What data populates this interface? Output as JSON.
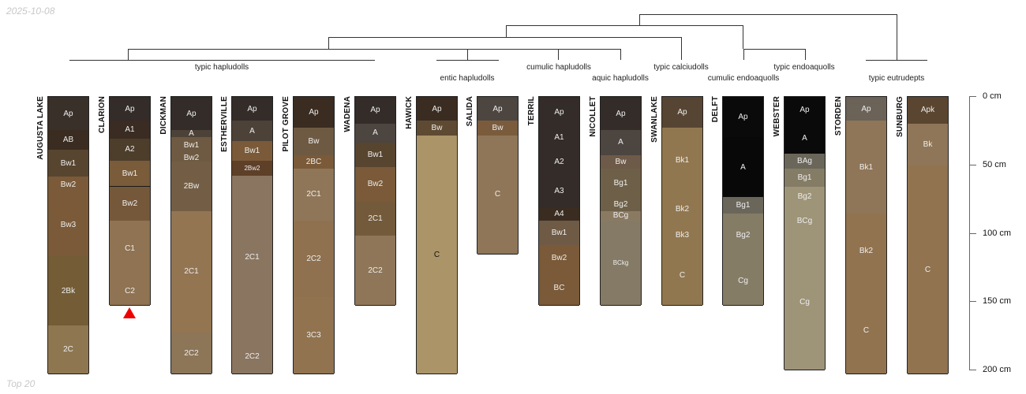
{
  "watermark_top": "2025-10-08",
  "watermark_bottom": "Top 20",
  "taxa": [
    {
      "label": "typic hapludolls"
    },
    {
      "label": "entic hapludolls"
    },
    {
      "label": "cumulic hapludolls"
    },
    {
      "label": "aquic hapludolls"
    },
    {
      "label": "typic calciudolls"
    },
    {
      "label": "cumulic endoaquolls"
    },
    {
      "label": "typic endoaquolls"
    },
    {
      "label": "typic eutrudepts"
    }
  ],
  "axis": {
    "unit": "cm",
    "ticks": [
      "0 cm",
      "50 cm",
      "100 cm",
      "150 cm",
      "200 cm"
    ],
    "tick_values": [
      0,
      50,
      100,
      150,
      200
    ]
  },
  "profiles": [
    {
      "name": "AUGUSTA LAKE",
      "horizons": [
        {
          "label": "Ap",
          "top": 0,
          "bottom": 25,
          "color": "#3a302a"
        },
        {
          "label": "AB",
          "top": 25,
          "bottom": 39,
          "color": "#3a2c20"
        },
        {
          "label": "Bw1",
          "top": 39,
          "bottom": 59,
          "color": "#574530"
        },
        {
          "label": "Bw2",
          "top": 59,
          "bottom": 71,
          "color": "#7a5a38"
        },
        {
          "label": "Bw3",
          "top": 71,
          "bottom": 117,
          "color": "#7a5a38"
        },
        {
          "label": "2Bk",
          "top": 117,
          "bottom": 168,
          "color": "#735c36"
        },
        {
          "label": "2C",
          "top": 168,
          "bottom": 203,
          "color": "#8e7750"
        }
      ]
    },
    {
      "name": "CLARION",
      "marker": "truncated",
      "horizons": [
        {
          "label": "Ap",
          "top": 0,
          "bottom": 18,
          "color": "#332c28"
        },
        {
          "label": "A1",
          "top": 18,
          "bottom": 31,
          "color": "#3a2c22"
        },
        {
          "label": "A2",
          "top": 31,
          "bottom": 47,
          "color": "#4d3d2b"
        },
        {
          "label": "Bw1",
          "top": 47,
          "bottom": 66,
          "color": "#7a5c3a"
        },
        {
          "label": "Bw2",
          "top": 66,
          "bottom": 91,
          "color": "#75583a"
        },
        {
          "label": "C1",
          "top": 91,
          "bottom": 132,
          "color": "#8f7352"
        },
        {
          "label": "C2",
          "top": 132,
          "bottom": 153,
          "color": "#8f7352"
        }
      ]
    },
    {
      "name": "DICKMAN",
      "horizons": [
        {
          "label": "Ap",
          "top": 0,
          "bottom": 25,
          "color": "#332c28"
        },
        {
          "label": "A",
          "top": 25,
          "bottom": 30,
          "color": "#4d4238"
        },
        {
          "label": "Bw1",
          "top": 30,
          "bottom": 42,
          "color": "#6e5a42"
        },
        {
          "label": "Bw2",
          "top": 42,
          "bottom": 48,
          "color": "#6e5a42"
        },
        {
          "label": "2Bw",
          "top": 48,
          "bottom": 84,
          "color": "#735e45"
        },
        {
          "label": "2C1",
          "top": 84,
          "bottom": 173,
          "color": "#937552"
        },
        {
          "label": "2C2",
          "top": 173,
          "bottom": 203,
          "color": "#8d7558"
        }
      ]
    },
    {
      "name": "ESTHERVILLE",
      "horizons": [
        {
          "label": "Ap",
          "top": 0,
          "bottom": 18,
          "color": "#332c28"
        },
        {
          "label": "A",
          "top": 18,
          "bottom": 33,
          "color": "#4d4238"
        },
        {
          "label": "Bw1",
          "top": 33,
          "bottom": 47,
          "color": "#7a5a38"
        },
        {
          "label": "2Bw2",
          "top": 47,
          "bottom": 58,
          "color": "#5e3f28"
        },
        {
          "label": "2C1",
          "top": 58,
          "bottom": 178,
          "color": "#8a7560"
        },
        {
          "label": "2C2",
          "top": 178,
          "bottom": 203,
          "color": "#8a7560"
        }
      ]
    },
    {
      "name": "PILOT GROVE",
      "horizons": [
        {
          "label": "Ap",
          "top": 0,
          "bottom": 23,
          "color": "#3a2c20"
        },
        {
          "label": "Bw",
          "top": 23,
          "bottom": 43,
          "color": "#6e5a42"
        },
        {
          "label": "2BC",
          "top": 43,
          "bottom": 53,
          "color": "#7a5a38"
        },
        {
          "label": "2C1",
          "top": 53,
          "bottom": 91,
          "color": "#8f7658"
        },
        {
          "label": "2C2",
          "top": 91,
          "bottom": 147,
          "color": "#8f7150"
        },
        {
          "label": "3C3",
          "top": 147,
          "bottom": 203,
          "color": "#917350"
        }
      ]
    },
    {
      "name": "WADENA",
      "horizons": [
        {
          "label": "Ap",
          "top": 0,
          "bottom": 20,
          "color": "#332c28"
        },
        {
          "label": "A",
          "top": 20,
          "bottom": 34,
          "color": "#4d4540"
        },
        {
          "label": "Bw1",
          "top": 34,
          "bottom": 52,
          "color": "#574530"
        },
        {
          "label": "Bw2",
          "top": 52,
          "bottom": 77,
          "color": "#7a5a38"
        },
        {
          "label": "2C1",
          "top": 77,
          "bottom": 102,
          "color": "#735a3a"
        },
        {
          "label": "2C2",
          "top": 102,
          "bottom": 153,
          "color": "#8f7658"
        }
      ]
    },
    {
      "name": "HAWICK",
      "horizons": [
        {
          "label": "Ap",
          "top": 0,
          "bottom": 18,
          "color": "#3a2c20"
        },
        {
          "label": "Bw",
          "top": 18,
          "bottom": 29,
          "color": "#5e4a32"
        },
        {
          "label": "C",
          "top": 29,
          "bottom": 203,
          "color": "#ab9468"
        }
      ]
    },
    {
      "name": "SALIDA",
      "horizons": [
        {
          "label": "Ap",
          "top": 0,
          "bottom": 18,
          "color": "#4d4540"
        },
        {
          "label": "Bw",
          "top": 18,
          "bottom": 29,
          "color": "#7a5c3d"
        },
        {
          "label": "C",
          "top": 29,
          "bottom": 115,
          "color": "#8f7658"
        }
      ]
    },
    {
      "name": "TERRIL",
      "horizons": [
        {
          "label": "Ap",
          "top": 0,
          "bottom": 23,
          "color": "#332c28"
        },
        {
          "label": "A1",
          "top": 23,
          "bottom": 38,
          "color": "#332c28"
        },
        {
          "label": "A2",
          "top": 38,
          "bottom": 58,
          "color": "#332c28"
        },
        {
          "label": "A3",
          "top": 58,
          "bottom": 81,
          "color": "#332c28"
        },
        {
          "label": "A4",
          "top": 81,
          "bottom": 91,
          "color": "#3a2c20"
        },
        {
          "label": "Bw1",
          "top": 91,
          "bottom": 109,
          "color": "#6e5a45"
        },
        {
          "label": "Bw2",
          "top": 109,
          "bottom": 128,
          "color": "#7a5a38"
        },
        {
          "label": "BC",
          "top": 128,
          "bottom": 153,
          "color": "#7a5a38"
        }
      ]
    },
    {
      "name": "NICOLLET",
      "horizons": [
        {
          "label": "Ap",
          "top": 0,
          "bottom": 25,
          "color": "#332c28"
        },
        {
          "label": "A",
          "top": 25,
          "bottom": 43,
          "color": "#4d4540"
        },
        {
          "label": "Bw",
          "top": 43,
          "bottom": 53,
          "color": "#6e5a48"
        },
        {
          "label": "Bg1",
          "top": 53,
          "bottom": 74,
          "color": "#6e6048"
        },
        {
          "label": "Bg2",
          "top": 74,
          "bottom": 84,
          "color": "#6e6048"
        },
        {
          "label": "BCg",
          "top": 84,
          "bottom": 91,
          "color": "#8a7a62"
        },
        {
          "label": "BCkg",
          "top": 91,
          "bottom": 153,
          "color": "#857a66"
        }
      ]
    },
    {
      "name": "SWANLAKE",
      "horizons": [
        {
          "label": "Ap",
          "top": 0,
          "bottom": 23,
          "color": "#574533"
        },
        {
          "label": "Bk1",
          "top": 23,
          "bottom": 71,
          "color": "#917750"
        },
        {
          "label": "Bk2",
          "top": 71,
          "bottom": 95,
          "color": "#917750"
        },
        {
          "label": "Bk3",
          "top": 95,
          "bottom": 109,
          "color": "#917750"
        },
        {
          "label": "C",
          "top": 109,
          "bottom": 153,
          "color": "#917750"
        }
      ]
    },
    {
      "name": "DELFT",
      "horizons": [
        {
          "label": "Ap",
          "top": 0,
          "bottom": 30,
          "color": "#0a0a0a"
        },
        {
          "label": "A",
          "top": 30,
          "bottom": 74,
          "color": "#080808"
        },
        {
          "label": "Bg1",
          "top": 74,
          "bottom": 86,
          "color": "#6b665a"
        },
        {
          "label": "Bg2",
          "top": 86,
          "bottom": 117,
          "color": "#857c66"
        },
        {
          "label": "Cg",
          "top": 117,
          "bottom": 153,
          "color": "#857c66"
        }
      ]
    },
    {
      "name": "WEBSTER",
      "horizons": [
        {
          "label": "Ap",
          "top": 0,
          "bottom": 20,
          "color": "#0a0a0a"
        },
        {
          "label": "A",
          "top": 20,
          "bottom": 42,
          "color": "#0a0a0a"
        },
        {
          "label": "BAg",
          "top": 42,
          "bottom": 53,
          "color": "#6b665a"
        },
        {
          "label": "Bg1",
          "top": 53,
          "bottom": 66,
          "color": "#857c66"
        },
        {
          "label": "Bg2",
          "top": 66,
          "bottom": 81,
          "color": "#9e9478"
        },
        {
          "label": "BCg",
          "top": 81,
          "bottom": 102,
          "color": "#9e9478"
        },
        {
          "label": "Cg",
          "top": 102,
          "bottom": 200,
          "color": "#9e9478"
        }
      ]
    },
    {
      "name": "STORDEN",
      "horizons": [
        {
          "label": "Ap",
          "top": 0,
          "bottom": 18,
          "color": "#6b6258"
        },
        {
          "label": "Bk1",
          "top": 18,
          "bottom": 86,
          "color": "#8f7658"
        },
        {
          "label": "Bk2",
          "top": 86,
          "bottom": 140,
          "color": "#917350"
        },
        {
          "label": "C",
          "top": 140,
          "bottom": 203,
          "color": "#917350"
        }
      ]
    },
    {
      "name": "SUNBURG",
      "horizons": [
        {
          "label": "Apk",
          "top": 0,
          "bottom": 20,
          "color": "#5a4530"
        },
        {
          "label": "Bk",
          "top": 20,
          "bottom": 51,
          "color": "#8f7658"
        },
        {
          "label": "C",
          "top": 51,
          "bottom": 203,
          "color": "#917350"
        }
      ]
    }
  ]
}
